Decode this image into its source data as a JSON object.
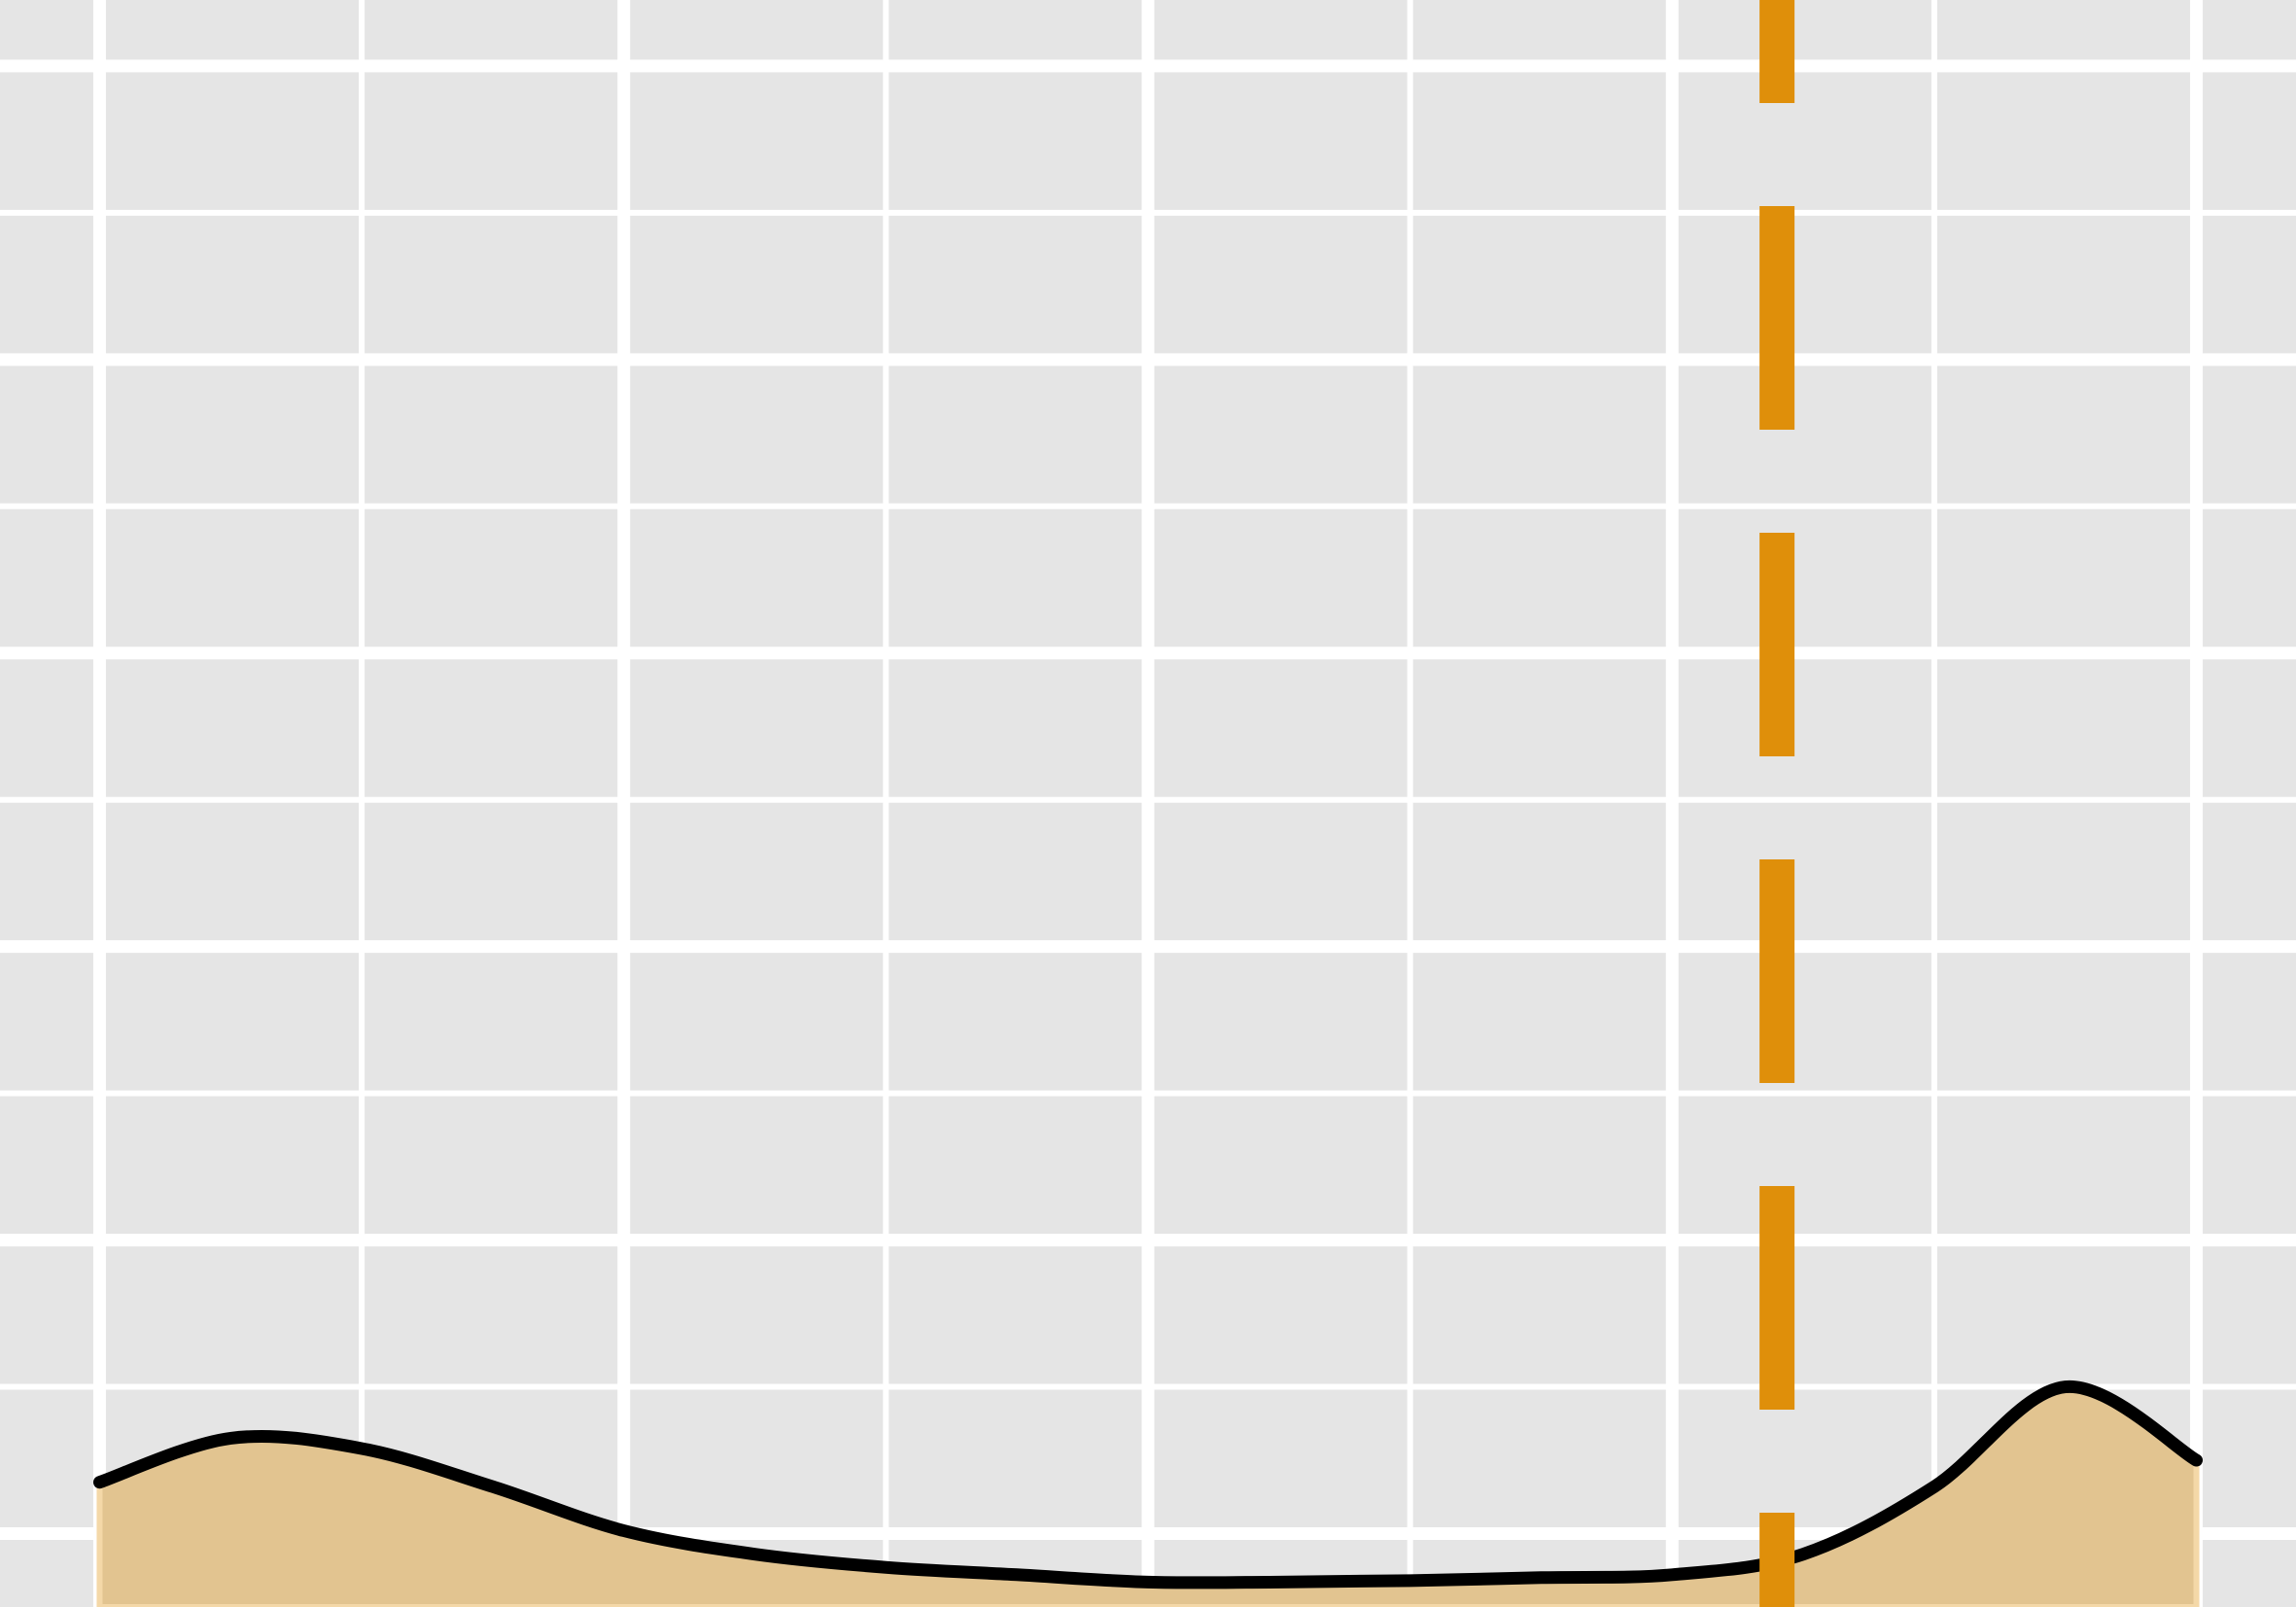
{
  "chart_data": {
    "type": "area",
    "title": "",
    "xlabel": "",
    "ylabel": "",
    "grid": true,
    "xlim": [
      -0.38,
      8.38
    ],
    "ylim": [
      0.0,
      10.95
    ],
    "x_major_ticks": [
      0,
      2,
      4,
      6,
      8
    ],
    "x_minor_ticks": [
      1,
      3,
      5,
      7
    ],
    "y_major_ticks": [
      0.5,
      2.5,
      4.5,
      6.5,
      8.5,
      10.5
    ],
    "y_minor_ticks": [
      1.5,
      3.5,
      5.5,
      7.5,
      9.5
    ],
    "series": [
      {
        "x": [
          0.0,
          0.5,
          1.0,
          1.5,
          2.0,
          2.5,
          3.0,
          3.5,
          4.0,
          4.5,
          5.0,
          5.5,
          6.0,
          6.5,
          7.0,
          7.5,
          8.0
        ],
        "values": [
          0.85,
          1.15,
          1.08,
          0.82,
          0.52,
          0.36,
          0.27,
          0.22,
          0.17,
          0.17,
          0.18,
          0.2,
          0.22,
          0.36,
          0.82,
          1.5,
          1.0
        ],
        "fill_color": "#e2c490",
        "line_color": "#000000"
      }
    ],
    "vertical_reference_line": {
      "x": 6.4,
      "color": "#df8f0a",
      "style": "dashed"
    },
    "colors": {
      "background": "#e5e5e5",
      "grid": "#ffffff",
      "area_fill": "#e2c490",
      "area_edge": "#f4d8a8",
      "line": "#000000",
      "reference_line": "#df8f0a"
    }
  }
}
